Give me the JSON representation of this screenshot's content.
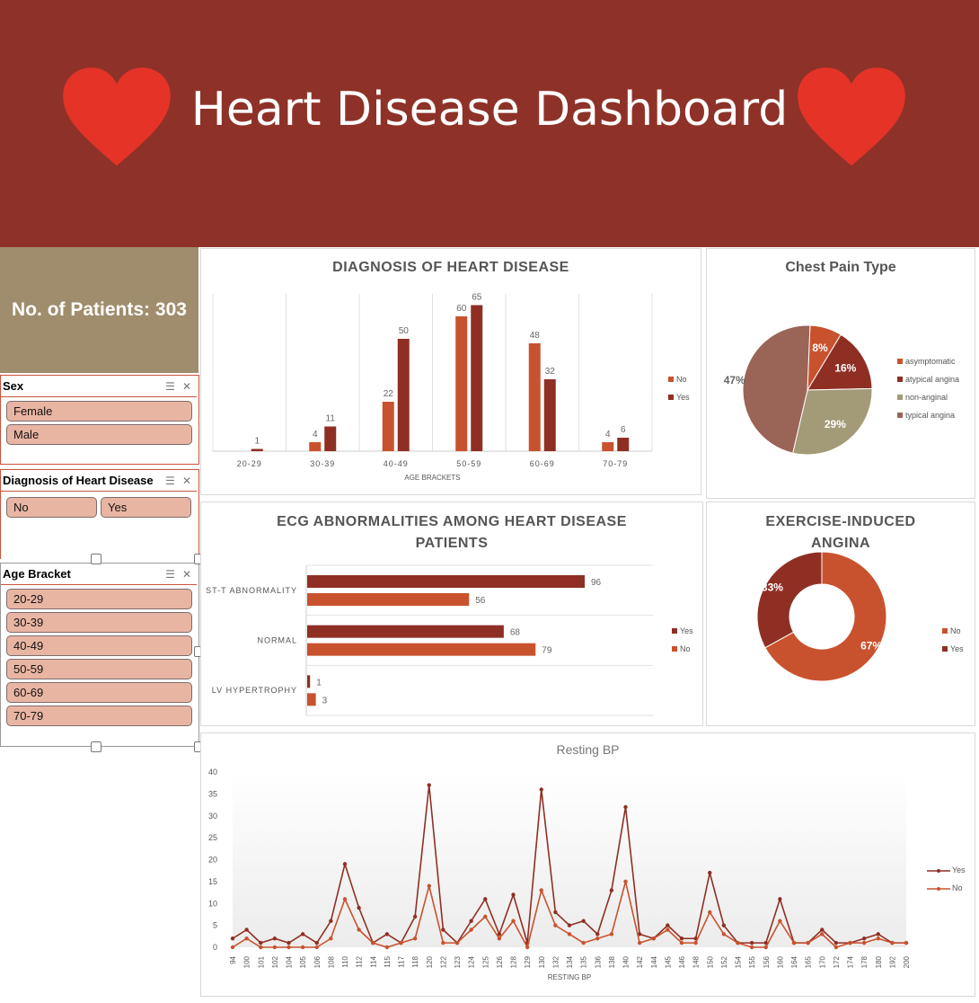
{
  "header": {
    "title": "Heart Disease Dashboard"
  },
  "kpi": {
    "patients_label": "No. of Patients: 303"
  },
  "colors": {
    "no": "#c9522e",
    "yes": "#8f2f24",
    "header_bg": "#8e3229",
    "slicer_btn": "#e9b5a3",
    "kpi_bg": "#a08d6d",
    "heart": "#e53328"
  },
  "slicers": {
    "sex": {
      "title": "Sex",
      "items": [
        "Female",
        "Male"
      ]
    },
    "diagnosis": {
      "title": "Diagnosis of Heart Disease",
      "items": [
        "No",
        "Yes"
      ]
    },
    "age": {
      "title": "Age Bracket",
      "items": [
        "20-29",
        "30-39",
        "40-49",
        "50-59",
        "60-69",
        "70-79"
      ]
    }
  },
  "chart_data": [
    {
      "type": "bar",
      "title": "DIAGNOSIS OF HEART DISEASE",
      "xlabel": "AGE BRACKETS",
      "categories": [
        "20-29",
        "30-39",
        "40-49",
        "50-59",
        "60-69",
        "70-79"
      ],
      "series": [
        {
          "name": "No",
          "values": [
            null,
            4,
            22,
            60,
            48,
            4
          ]
        },
        {
          "name": "Yes",
          "values": [
            1,
            11,
            50,
            65,
            32,
            6
          ]
        }
      ],
      "legend": "right"
    },
    {
      "type": "pie",
      "title": "Chest Pain Type",
      "labels": [
        "asymptomatic",
        "atypical angina",
        "non-anginal",
        "typical angina"
      ],
      "values": [
        8,
        16,
        29,
        47
      ],
      "value_labels": [
        "8%",
        "16%",
        "29%",
        "47%"
      ],
      "colors": [
        "#c9522e",
        "#8f2f24",
        "#a39b78",
        "#9a6456"
      ],
      "legend": "right"
    },
    {
      "type": "bar",
      "orientation": "horizontal",
      "title": "ECG ABNORMALITIES AMONG HEART DISEASE PATIENTS",
      "categories": [
        "ST-T ABNORMALITY",
        "NORMAL",
        "LV HYPERTROPHY"
      ],
      "series": [
        {
          "name": "Yes",
          "values": [
            96,
            68,
            1
          ]
        },
        {
          "name": "No",
          "values": [
            56,
            79,
            3
          ]
        }
      ],
      "legend": "right"
    },
    {
      "type": "pie",
      "variant": "doughnut",
      "title": "EXERCISE-INDUCED ANGINA",
      "labels": [
        "No",
        "Yes"
      ],
      "values": [
        67,
        33
      ],
      "value_labels": [
        "67%",
        "33%"
      ],
      "legend": "right"
    },
    {
      "type": "line",
      "title": "Resting BP",
      "xlabel": "RESTING BP",
      "x": [
        "94",
        "100",
        "101",
        "102",
        "104",
        "105",
        "106",
        "108",
        "110",
        "112",
        "114",
        "115",
        "117",
        "118",
        "120",
        "122",
        "123",
        "124",
        "125",
        "126",
        "128",
        "129",
        "130",
        "132",
        "134",
        "135",
        "136",
        "138",
        "140",
        "142",
        "144",
        "145",
        "146",
        "148",
        "150",
        "152",
        "154",
        "155",
        "156",
        "160",
        "164",
        "165",
        "170",
        "172",
        "174",
        "178",
        "180",
        "192",
        "200"
      ],
      "series": [
        {
          "name": "Yes",
          "values": [
            2,
            4,
            1,
            2,
            1,
            3,
            1,
            6,
            19,
            9,
            1,
            3,
            1,
            7,
            37,
            4,
            1,
            6,
            11,
            3,
            12,
            1,
            36,
            8,
            5,
            6,
            3,
            13,
            32,
            3,
            2,
            5,
            2,
            2,
            17,
            5,
            1,
            1,
            1,
            11,
            1,
            1,
            4,
            1,
            1,
            2,
            3,
            1,
            1
          ]
        },
        {
          "name": "No",
          "values": [
            0,
            2,
            0,
            0,
            0,
            0,
            0,
            2,
            11,
            4,
            1,
            0,
            1,
            2,
            14,
            1,
            1,
            4,
            7,
            2,
            6,
            0,
            13,
            5,
            3,
            1,
            2,
            3,
            15,
            1,
            2,
            4,
            1,
            1,
            8,
            3,
            1,
            0,
            0,
            6,
            1,
            1,
            3,
            0,
            1,
            1,
            2,
            1,
            1
          ]
        }
      ],
      "ylim": [
        0,
        40
      ],
      "yticks": [
        0,
        5,
        10,
        15,
        20,
        25,
        30,
        35,
        40
      ],
      "legend": "right"
    }
  ]
}
